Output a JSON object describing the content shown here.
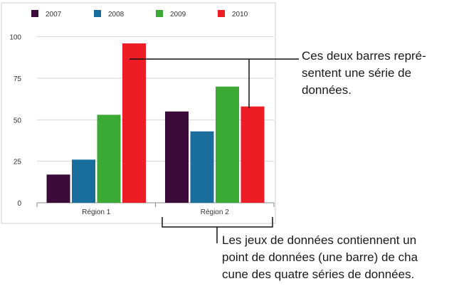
{
  "chart_data": {
    "type": "bar",
    "categories": [
      "Région 1",
      "Région 2"
    ],
    "series": [
      {
        "name": "2007",
        "color": "#3b0c3a",
        "values": [
          17,
          55
        ]
      },
      {
        "name": "2008",
        "color": "#1a6e9e",
        "values": [
          26,
          43
        ]
      },
      {
        "name": "2009",
        "color": "#3aaa35",
        "values": [
          53,
          70
        ]
      },
      {
        "name": "2010",
        "color": "#ee1c25",
        "values": [
          96,
          58
        ]
      }
    ],
    "yticks": [
      0,
      25,
      50,
      75,
      100
    ],
    "ylim": [
      0,
      105
    ],
    "grid": true,
    "legend_position": "top"
  },
  "annotations": {
    "series_note": [
      "Ces deux barres repré-",
      "sentent une série de",
      "données."
    ],
    "dataset_note": [
      "Les jeux de données contiennent un",
      "point de données (une barre) de cha",
      "cune des quatre séries de données."
    ]
  }
}
